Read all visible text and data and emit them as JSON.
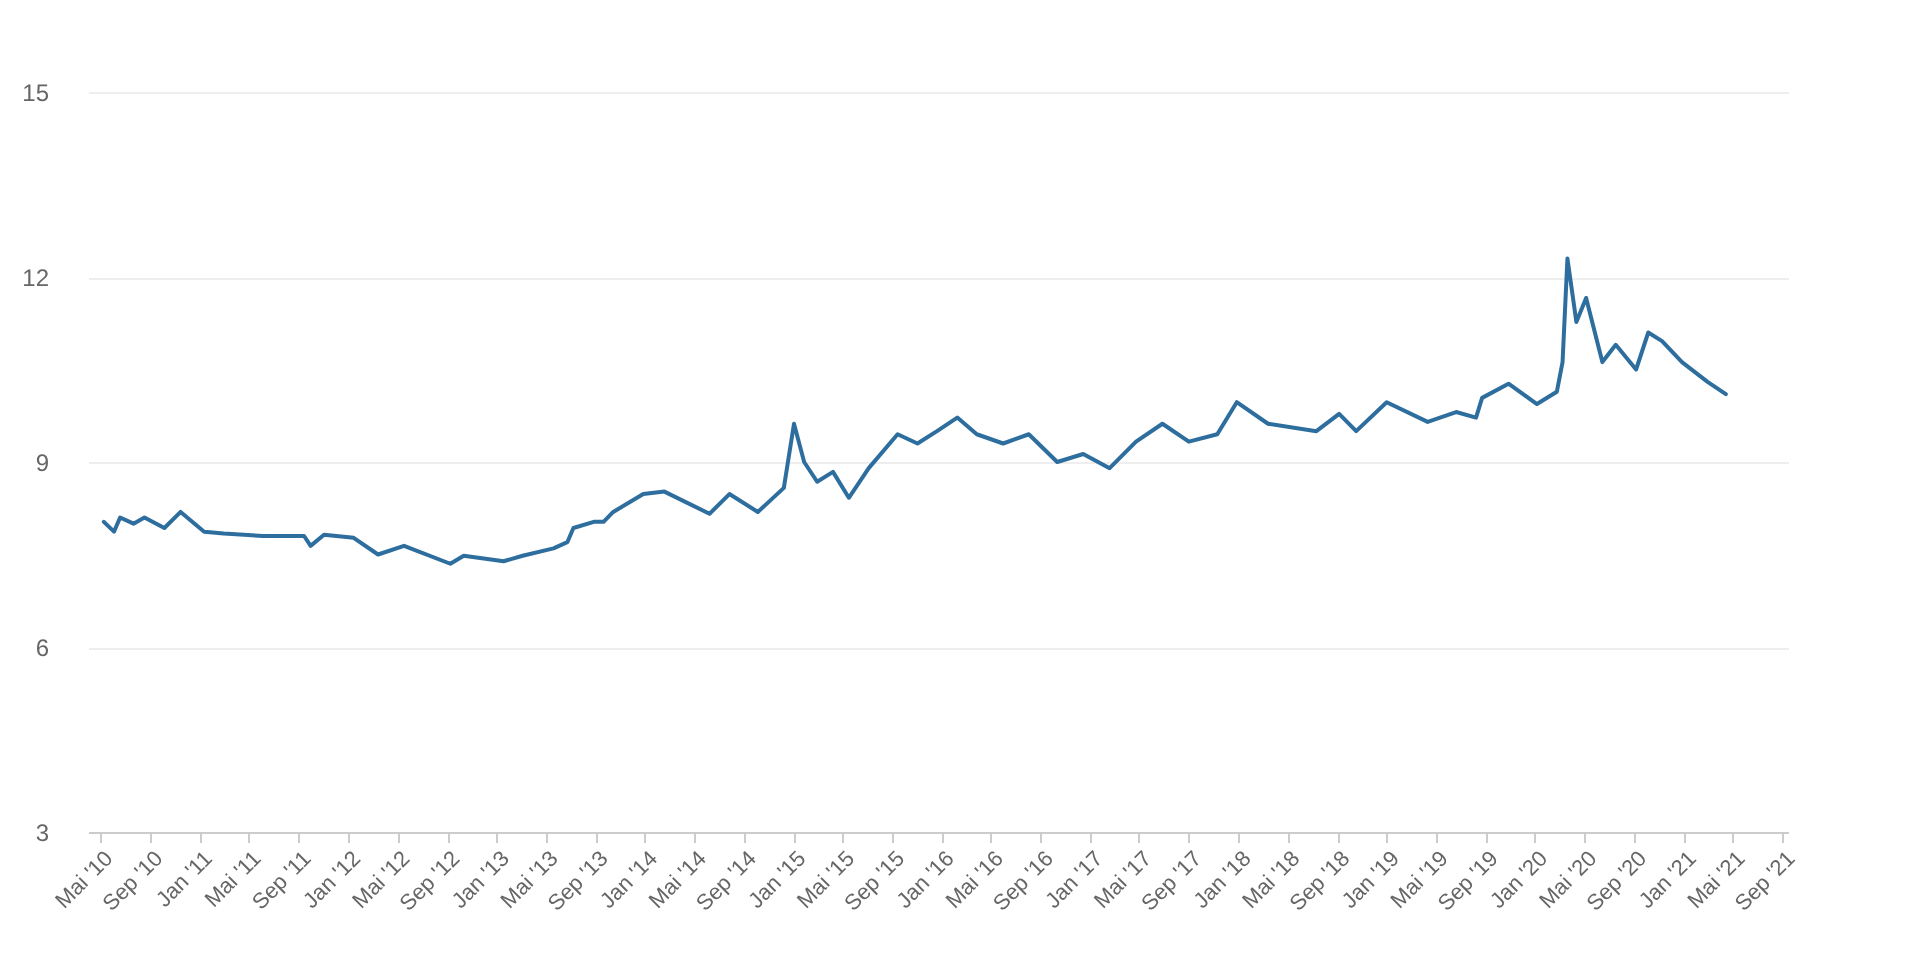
{
  "chart_data": {
    "type": "line",
    "grid": "y",
    "marker": "none",
    "line_style": "solid",
    "xlim": [
      "2010-04-01",
      "2021-09-15"
    ],
    "xticks": [
      {
        "value": "2010-05",
        "label": "Mai '10"
      },
      {
        "value": "2010-09",
        "label": "Sep '10"
      },
      {
        "value": "2011-01",
        "label": "Jan '11"
      },
      {
        "value": "2011-05",
        "label": "Mai '11"
      },
      {
        "value": "2011-09",
        "label": "Sep '11"
      },
      {
        "value": "2012-01",
        "label": "Jan '12"
      },
      {
        "value": "2012-05",
        "label": "Mai '12"
      },
      {
        "value": "2012-09",
        "label": "Sep '12"
      },
      {
        "value": "2013-01",
        "label": "Jan '13"
      },
      {
        "value": "2013-05",
        "label": "Mai '13"
      },
      {
        "value": "2013-09",
        "label": "Sep '13"
      },
      {
        "value": "2014-01",
        "label": "Jan '14"
      },
      {
        "value": "2014-05",
        "label": "Mai '14"
      },
      {
        "value": "2014-09",
        "label": "Sep '14"
      },
      {
        "value": "2015-01",
        "label": "Jan '15"
      },
      {
        "value": "2015-05",
        "label": "Mai '15"
      },
      {
        "value": "2015-09",
        "label": "Sep '15"
      },
      {
        "value": "2016-01",
        "label": "Jan '16"
      },
      {
        "value": "2016-05",
        "label": "Mai '16"
      },
      {
        "value": "2016-09",
        "label": "Sep '16"
      },
      {
        "value": "2017-01",
        "label": "Jan '17"
      },
      {
        "value": "2017-05",
        "label": "Mai '17"
      },
      {
        "value": "2017-09",
        "label": "Sep '17"
      },
      {
        "value": "2018-01",
        "label": "Jan '18"
      },
      {
        "value": "2018-05",
        "label": "Mai '18"
      },
      {
        "value": "2018-09",
        "label": "Sep '18"
      },
      {
        "value": "2019-01",
        "label": "Jan '19"
      },
      {
        "value": "2019-05",
        "label": "Mai '19"
      },
      {
        "value": "2019-09",
        "label": "Sep '19"
      },
      {
        "value": "2020-01",
        "label": "Jan '20"
      },
      {
        "value": "2020-05",
        "label": "Mai '20"
      },
      {
        "value": "2020-09",
        "label": "Sep '20"
      },
      {
        "value": "2021-01",
        "label": "Jan '21"
      },
      {
        "value": "2021-05",
        "label": "Mai '21"
      },
      {
        "value": "2021-09",
        "label": "Sep '21"
      }
    ],
    "ylim": [
      3,
      15
    ],
    "yticks": [
      3,
      6,
      9,
      12,
      15
    ],
    "x": [
      "2010-05-10",
      "2010-06-04",
      "2010-06-19",
      "2010-07-22",
      "2010-08-18",
      "2010-10-06",
      "2010-11-15",
      "2011-01-12",
      "2011-03-01",
      "2011-06-06",
      "2011-09-15",
      "2011-10-01",
      "2011-11-03",
      "2012-01-15",
      "2012-03-15",
      "2012-05-18",
      "2012-09-09",
      "2012-10-12",
      "2013-01-18",
      "2013-03-06",
      "2013-05-21",
      "2013-06-24",
      "2013-07-09",
      "2013-08-28",
      "2013-09-21",
      "2013-10-15",
      "2013-12-28",
      "2014-02-18",
      "2014-06-09",
      "2014-07-28",
      "2014-10-06",
      "2014-12-09",
      "2015-01-03",
      "2015-01-28",
      "2015-03-01",
      "2015-04-09",
      "2015-05-18",
      "2015-07-06",
      "2015-09-15",
      "2015-11-03",
      "2015-12-21",
      "2016-02-09",
      "2016-03-28",
      "2016-06-01",
      "2016-08-03",
      "2016-10-12",
      "2016-12-15",
      "2017-02-18",
      "2017-04-24",
      "2017-06-28",
      "2017-09-01",
      "2017-11-10",
      "2017-12-28",
      "2018-03-15",
      "2018-07-12",
      "2018-09-06",
      "2018-10-18",
      "2019-01-01",
      "2019-04-12",
      "2019-06-21",
      "2019-08-09",
      "2019-08-24",
      "2019-10-28",
      "2020-01-06",
      "2020-02-24",
      "2020-03-09",
      "2020-03-21",
      "2020-04-12",
      "2020-05-06",
      "2020-06-15",
      "2020-07-18",
      "2020-09-06",
      "2020-10-06",
      "2020-11-09",
      "2020-12-28",
      "2021-03-01",
      "2021-04-15"
    ],
    "series": [
      {
        "color": "#2e6e9e",
        "values": [
          8.03,
          7.87,
          8.1,
          8.0,
          8.1,
          7.93,
          8.19,
          7.87,
          7.84,
          7.8,
          7.8,
          7.64,
          7.82,
          7.77,
          7.5,
          7.64,
          7.35,
          7.48,
          7.39,
          7.48,
          7.6,
          7.7,
          7.93,
          8.03,
          8.03,
          8.19,
          8.48,
          8.52,
          8.16,
          8.48,
          8.19,
          8.58,
          9.62,
          9.0,
          8.68,
          8.84,
          8.42,
          8.9,
          9.45,
          9.3,
          9.5,
          9.72,
          9.45,
          9.3,
          9.45,
          9.0,
          9.13,
          8.9,
          9.33,
          9.62,
          9.33,
          9.45,
          9.97,
          9.62,
          9.5,
          9.78,
          9.5,
          9.97,
          9.65,
          9.81,
          9.72,
          10.04,
          10.27,
          9.94,
          10.14,
          10.62,
          12.3,
          11.27,
          11.66,
          10.62,
          10.9,
          10.5,
          11.1,
          10.96,
          10.62,
          10.3,
          10.1
        ]
      }
    ]
  }
}
